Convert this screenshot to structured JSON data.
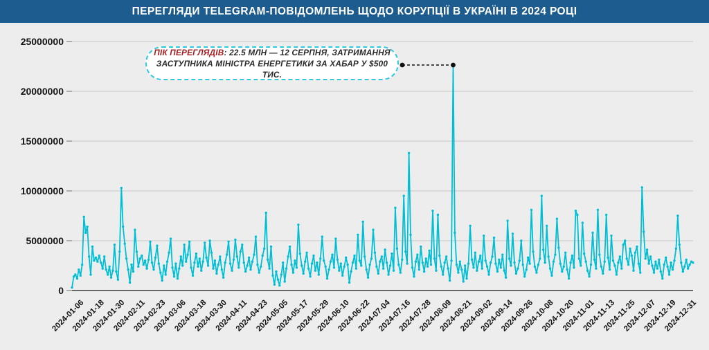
{
  "title": "ПЕРЕГЛЯДИ TELEGRAM-ПОВІДОМЛЕНЬ ЩОДО КОРУПЦІЇ В УКРАЇНІ В 2024 РОЦІ",
  "colors": {
    "header_bg": "#1d5c8e",
    "header_text": "#ffffff",
    "background": "#ededed",
    "line": "#00bfd5",
    "grid": "#c6c6c6",
    "axis": "#3d3d3d",
    "tick_label": "#141414",
    "annotation_border": "#2fc9dd",
    "annotation_accent": "#a81d22",
    "annotation_text": "#2b2b2b",
    "leader_dot": "#111111"
  },
  "annotation": {
    "label": "ПІК ПЕРЕГЛЯДІВ",
    "separator": ": ",
    "text_line1": "22.5 МЛН — 12 СЕРПНЯ, ЗАТРИМАННЯ",
    "text_line2": "ЗАСТУПНИКА МІНІСТРА ЕНЕРГЕТИКИ ЗА ХАБАР У $500 ТИС.",
    "peak_date": "2024-08-12",
    "peak_value": 22500000
  },
  "chart_data": {
    "type": "line",
    "title": "ПЕРЕГЛЯДИ TELEGRAM-ПОВІДОМЛЕНЬ ЩОДО КОРУПЦІЇ В УКРАЇНІ В 2024 РОЦІ",
    "x_start_date": "2024-01-01",
    "x_end_date": "2024-12-31",
    "x_tick_labels": [
      "2024-01-06",
      "2024-01-18",
      "2024-01-30",
      "2024-02-11",
      "2024-02-23",
      "2024-03-06",
      "2024-03-18",
      "2024-03-30",
      "2024-04-11",
      "2024-04-23",
      "2024-05-05",
      "2024-05-17",
      "2024-05-29",
      "2024-06-10",
      "2024-06-22",
      "2024-07-04",
      "2024-07-16",
      "2024-07-28",
      "2024-08-09",
      "2024-08-21",
      "2024-09-02",
      "2024-09-14",
      "2024-09-26",
      "2024-10-08",
      "2024-10-20",
      "2024-11-01",
      "2024-11-13",
      "2024-11-25",
      "2024-12-07",
      "2024-12-19",
      "2024-12-31"
    ],
    "y_ticks": [
      0,
      5000000,
      10000000,
      15000000,
      20000000,
      25000000
    ],
    "ylim": [
      0,
      25000000
    ],
    "unit": "views",
    "values_unit": "millions_of_views_per_day",
    "grid": "horizontal",
    "legend": "none",
    "values_millions": [
      0.3,
      1.4,
      1.6,
      1.2,
      2.1,
      1.5,
      2.6,
      7.4,
      5.8,
      6.4,
      3.4,
      1.6,
      4.4,
      3.0,
      3.3,
      2.9,
      3.5,
      2.8,
      2.2,
      3.4,
      2.1,
      1.6,
      2.4,
      1.3,
      2.0,
      4.6,
      1.9,
      1.1,
      3.9,
      10.3,
      6.4,
      4.7,
      3.2,
      2.1,
      0.8,
      2.6,
      1.9,
      6.1,
      3.9,
      2.4,
      3.2,
      3.5,
      2.6,
      3.0,
      2.2,
      3.1,
      4.9,
      2.8,
      2.1,
      3.3,
      4.5,
      2.7,
      1.8,
      1.0,
      2.5,
      1.6,
      2.9,
      3.8,
      5.2,
      2.3,
      1.4,
      2.7,
      1.2,
      2.2,
      3.4,
      2.5,
      4.6,
      2.9,
      3.6,
      4.9,
      2.3,
      1.5,
      2.8,
      3.7,
      2.4,
      3.2,
      2.0,
      2.9,
      4.8,
      3.3,
      2.5,
      5.0,
      3.8,
      2.2,
      3.0,
      1.7,
      2.6,
      3.4,
      2.1,
      1.3,
      2.8,
      3.6,
      4.9,
      2.7,
      2.0,
      3.1,
      5.1,
      3.4,
      2.3,
      3.9,
      4.6,
      2.8,
      1.9,
      2.5,
      3.3,
      2.1,
      2.9,
      3.6,
      5.4,
      2.6,
      1.8,
      2.4,
      3.5,
      4.2,
      7.8,
      3.1,
      2.2,
      4.4,
      1.5,
      0.6,
      1.9,
      1.1,
      0.5,
      1.6,
      2.8,
      0.9,
      2.2,
      3.4,
      4.4,
      2.6,
      1.8,
      3.0,
      2.3,
      6.6,
      3.7,
      2.5,
      1.7,
      2.9,
      3.8,
      2.2,
      1.4,
      2.7,
      3.5,
      2.0,
      2.8,
      1.6,
      3.2,
      5.4,
      3.0,
      2.4,
      1.2,
      2.1,
      2.9,
      3.6,
      2.3,
      5.2,
      3.1,
      2.0,
      2.7,
      1.5,
      2.4,
      3.3,
      2.6,
      0.8,
      1.9,
      2.8,
      3.5,
      2.2,
      5.6,
      3.0,
      2.5,
      6.9,
      3.4,
      2.1,
      1.3,
      2.6,
      3.2,
      6.1,
      3.8,
      2.4,
      1.7,
      2.9,
      3.4,
      2.2,
      4.1,
      2.8,
      1.6,
      2.5,
      3.7,
      2.0,
      8.3,
      4.2,
      2.6,
      1.8,
      3.1,
      9.5,
      3.9,
      2.7,
      13.8,
      5.6,
      2.3,
      1.4,
      2.9,
      3.6,
      2.1,
      4.4,
      2.8,
      1.9,
      3.2,
      2.4,
      4.0,
      2.6,
      8.0,
      3.2,
      2.0,
      7.6,
      3.5,
      2.4,
      1.6,
      2.8,
      3.4,
      2.2,
      1.0,
      3.0,
      22.5,
      5.8,
      2.6,
      1.8,
      2.9,
      2.1,
      0.9,
      2.5,
      1.2,
      2.7,
      6.5,
      3.1,
      2.3,
      3.8,
      2.0,
      2.9,
      3.5,
      2.2,
      5.5,
      3.0,
      2.4,
      1.6,
      2.8,
      3.4,
      5.3,
      2.7,
      1.9,
      3.1,
      2.3,
      3.6,
      2.0,
      1.3,
      7.0,
      3.2,
      2.5,
      5.7,
      2.8,
      1.7,
      2.2,
      3.0,
      5.0,
      2.6,
      1.4,
      2.1,
      3.3,
      2.7,
      8.1,
      3.9,
      2.4,
      1.8,
      2.6,
      3.2,
      9.5,
      4.1,
      2.8,
      6.5,
      3.4,
      2.2,
      1.5,
      2.9,
      3.6,
      7.2,
      4.3,
      2.7,
      1.9,
      2.4,
      3.8,
      2.1,
      1.2,
      2.8,
      3.5,
      2.3,
      8.0,
      7.6,
      3.2,
      2.5,
      6.8,
      3.7,
      2.9,
      2.0,
      1.4,
      2.6,
      5.8,
      3.1,
      2.2,
      8.1,
      3.6,
      2.4,
      1.7,
      2.9,
      7.6,
      3.3,
      2.1,
      5.5,
      3.0,
      2.5,
      1.6,
      2.8,
      3.4,
      2.2,
      4.6,
      5.0,
      3.2,
      2.6,
      4.2,
      3.5,
      2.0,
      3.8,
      4.4,
      2.7,
      1.8,
      10.35,
      5.9,
      3.2,
      4.1,
      2.7,
      3.4,
      2.5,
      1.8,
      2.9,
      2.2,
      3.1,
      1.9,
      1.2,
      2.6,
      3.3,
      2.4,
      1.6,
      2.8,
      2.1,
      3.0,
      4.2,
      7.5,
      4.6,
      2.8,
      1.9,
      2.4,
      3.1,
      2.2,
      2.6,
      2.9,
      2.8
    ]
  }
}
